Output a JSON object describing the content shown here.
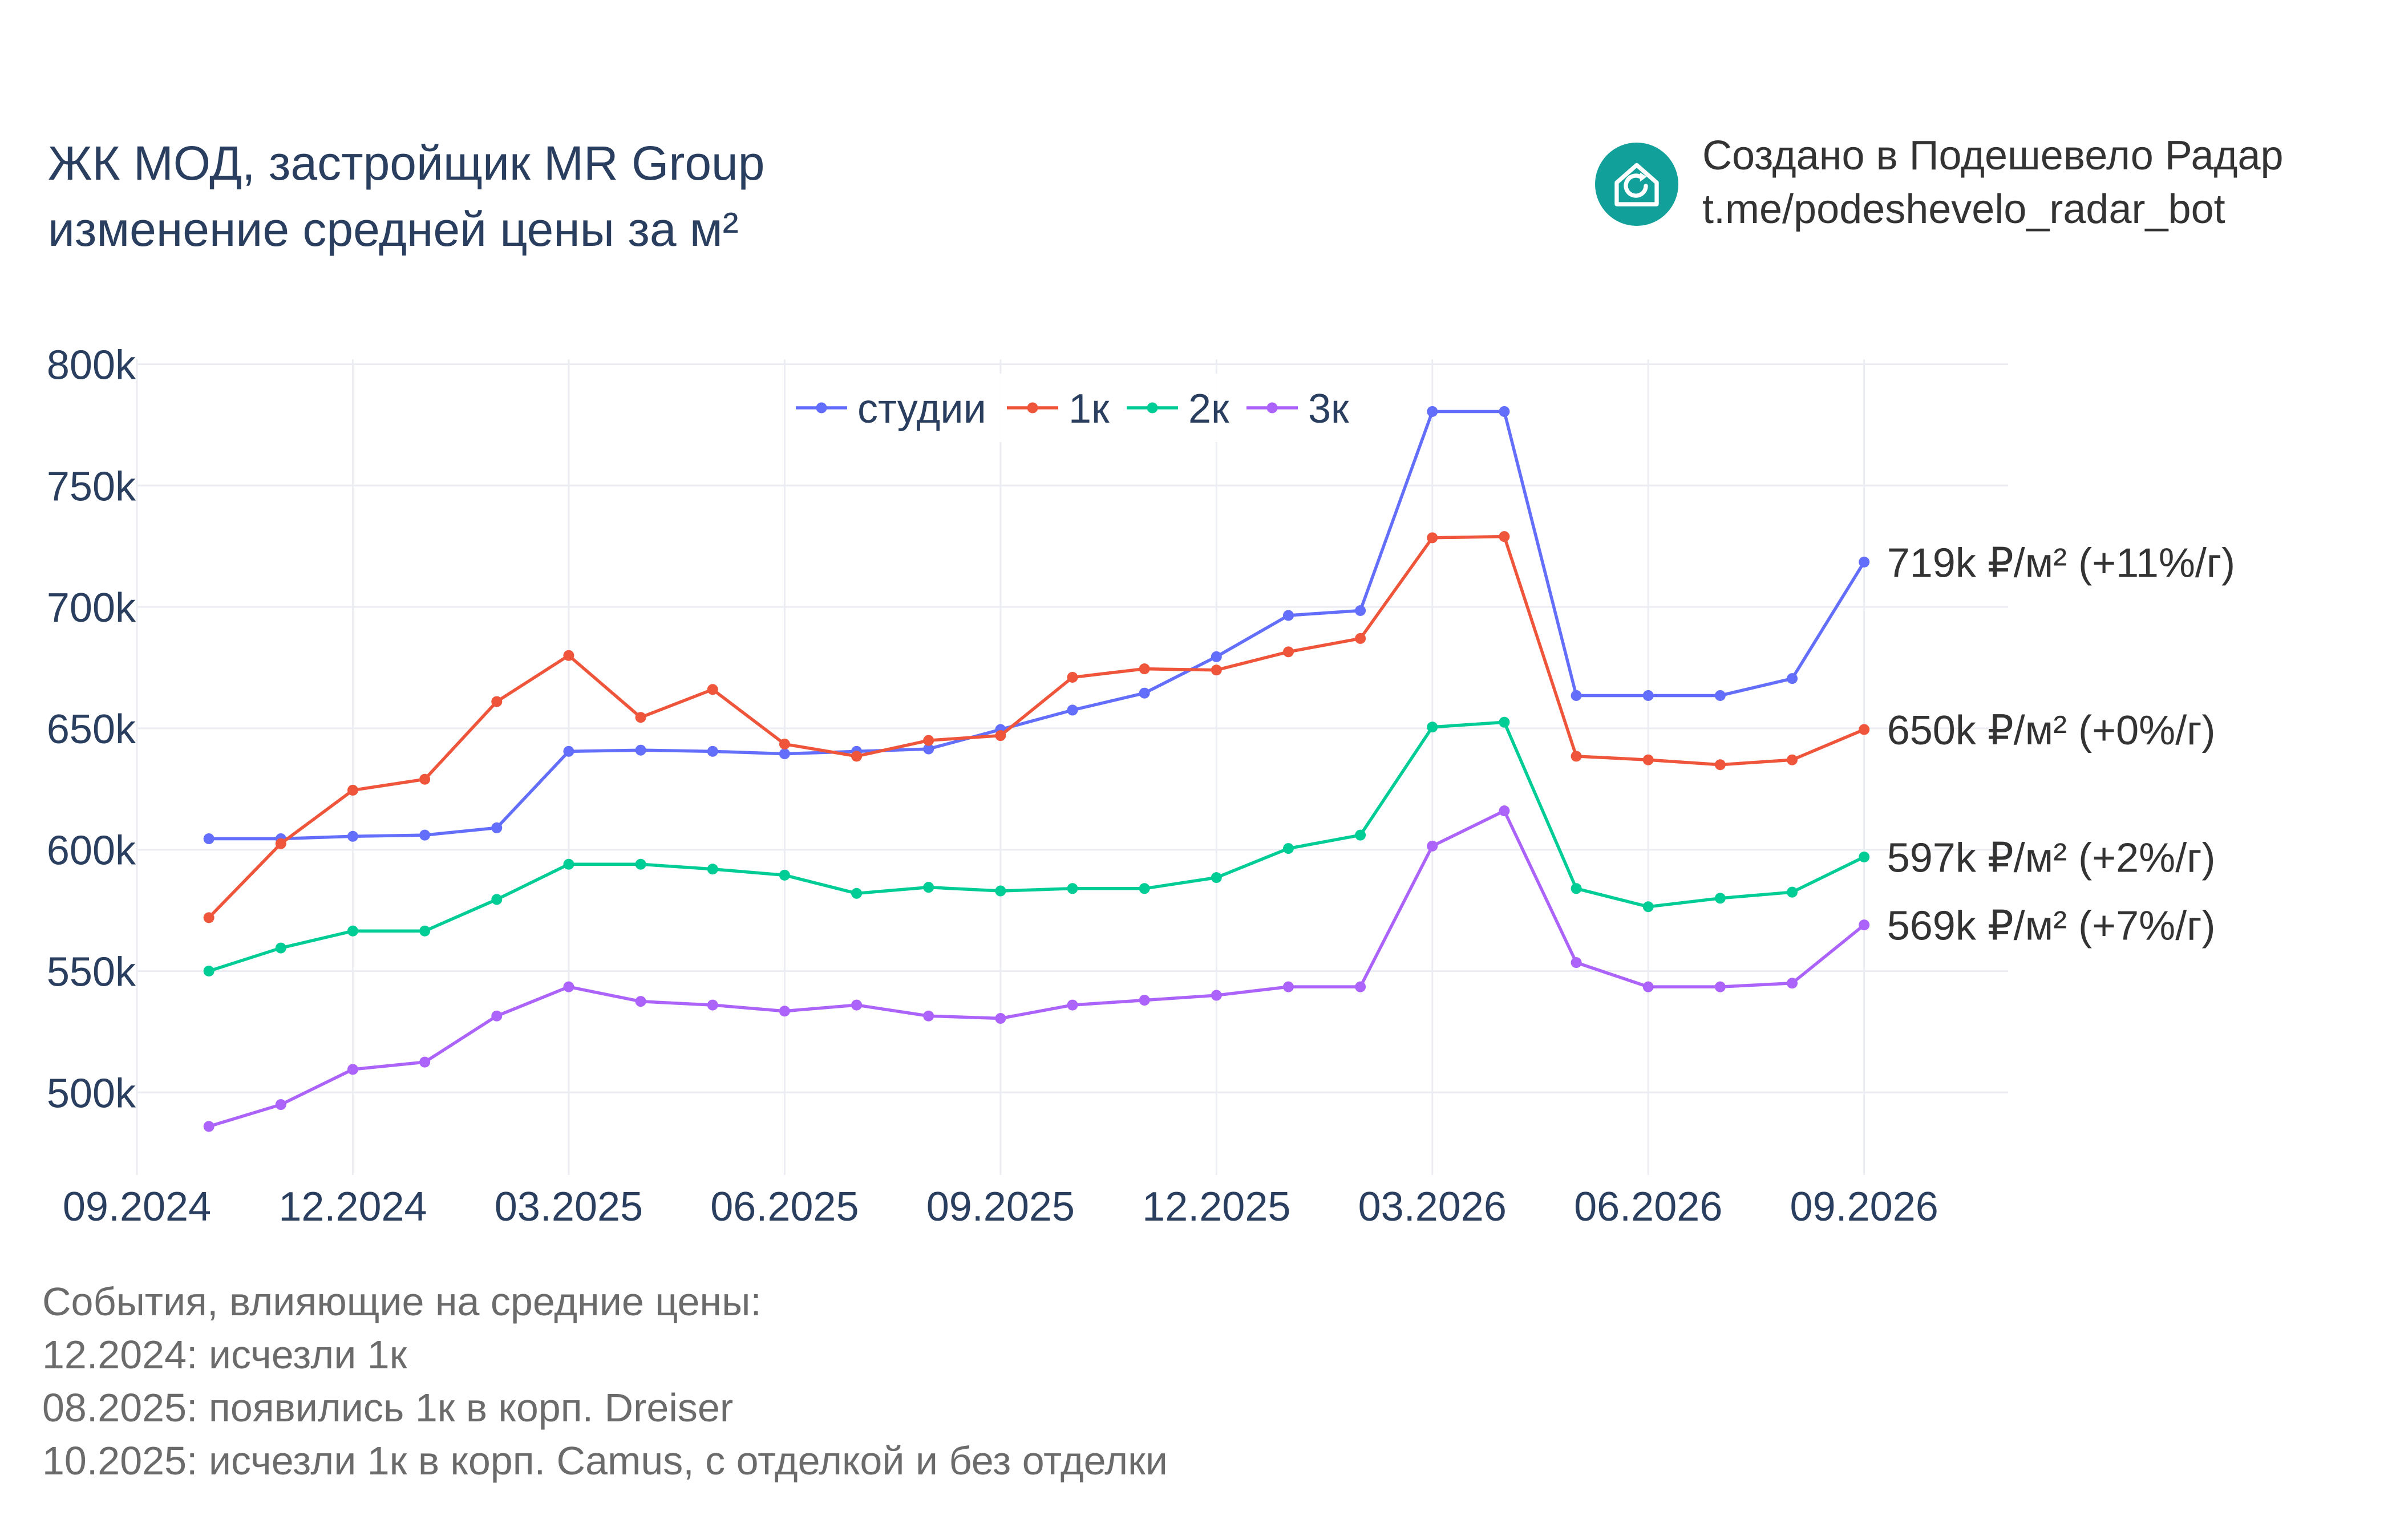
{
  "title": {
    "line1": "ЖК МОД, застройщик MR Group",
    "line2": "изменение средней цены за м²"
  },
  "brand": {
    "line1": "Создано в Подешевело Радар",
    "line2": "t.me/podeshevelo_radar_bot",
    "logo_icon": "house-refresh-icon",
    "logo_color": "#12a19a"
  },
  "events": {
    "heading": "События, влияющие на средние цены:",
    "items": [
      "12.2024: исчезли 1к",
      "08.2025: появились 1к в корп. Dreiser",
      "10.2025: исчезли 1к в корп. Camus, с отделкой и без отделки"
    ]
  },
  "chart_data": {
    "type": "line",
    "title": "",
    "xlabel": "",
    "ylabel": "",
    "x": [
      "2024-10",
      "2024-11",
      "2024-12",
      "2025-01",
      "2025-02",
      "2025-03",
      "2025-04",
      "2025-05",
      "2025-06",
      "2025-07",
      "2025-08",
      "2025-09",
      "2025-10",
      "2025-11",
      "2025-12",
      "2026-01",
      "2026-02",
      "2026-03",
      "2026-04",
      "2026-05",
      "2026-06",
      "2026-07",
      "2026-08",
      "2026-09"
    ],
    "x_ticks": [
      {
        "value": "2024-09",
        "label": "09.2024"
      },
      {
        "value": "2024-12",
        "label": "12.2024"
      },
      {
        "value": "2025-03",
        "label": "03.2025"
      },
      {
        "value": "2025-06",
        "label": "06.2025"
      },
      {
        "value": "2025-09",
        "label": "09.2025"
      },
      {
        "value": "2025-12",
        "label": "12.2025"
      },
      {
        "value": "2026-03",
        "label": "03.2026"
      },
      {
        "value": "2026-06",
        "label": "06.2026"
      },
      {
        "value": "2026-09",
        "label": "09.2026"
      }
    ],
    "xlim": [
      "2024-09",
      "2026-11"
    ],
    "ylim": [
      466000,
      802000
    ],
    "y_ticks": [
      {
        "value": 500000,
        "label": "500k"
      },
      {
        "value": 550000,
        "label": "550k"
      },
      {
        "value": 600000,
        "label": "600k"
      },
      {
        "value": 650000,
        "label": "650k"
      },
      {
        "value": 700000,
        "label": "700k"
      },
      {
        "value": 750000,
        "label": "750k"
      },
      {
        "value": 800000,
        "label": "800k"
      }
    ],
    "grid": true,
    "legend_position": "top-center",
    "series": [
      {
        "name": "студии",
        "color": "#636efa",
        "values": [
          604500,
          604500,
          605500,
          606000,
          609000,
          640500,
          641000,
          640500,
          639500,
          640500,
          641500,
          649500,
          657500,
          664500,
          679500,
          696500,
          698500,
          780500,
          780500,
          663500,
          663500,
          663500,
          670500,
          718500
        ],
        "end_label": "719k ₽/м² (+11%/г)"
      },
      {
        "name": "1к",
        "color": "#ef553b",
        "values": [
          572000,
          602500,
          624500,
          629000,
          661000,
          680000,
          654500,
          666000,
          643500,
          638500,
          645000,
          647000,
          671000,
          674500,
          674000,
          681500,
          687000,
          728500,
          729000,
          638500,
          637000,
          635000,
          637000,
          649500
        ],
        "end_label": "650k ₽/м² (+0%/г)"
      },
      {
        "name": "2к",
        "color": "#00cc96",
        "values": [
          550000,
          559500,
          566500,
          566500,
          579500,
          594000,
          594000,
          592000,
          589500,
          582000,
          584500,
          583000,
          584000,
          584000,
          588500,
          600500,
          606000,
          650500,
          652500,
          584000,
          576500,
          580000,
          582500,
          597000
        ],
        "end_label": "597k ₽/м² (+2%/г)"
      },
      {
        "name": "3к",
        "color": "#ab63fa",
        "values": [
          486000,
          495000,
          509500,
          512500,
          531500,
          543500,
          537500,
          536000,
          533500,
          536000,
          531500,
          530500,
          536000,
          538000,
          540000,
          543500,
          543500,
          601500,
          616000,
          553500,
          543500,
          543500,
          545000,
          569000
        ],
        "end_label": "569k ₽/м² (+7%/г)"
      }
    ]
  }
}
